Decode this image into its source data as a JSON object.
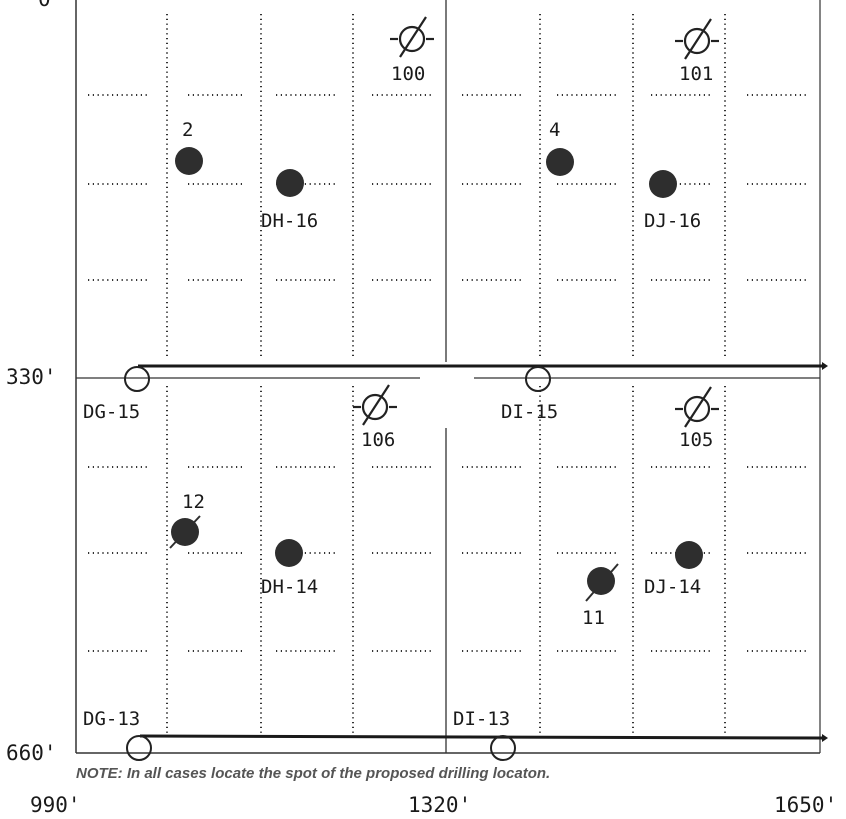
{
  "axes": {
    "y_labels": [
      "0",
      "330'",
      "660'"
    ],
    "x_labels": [
      "990'",
      "1320'",
      "1650'"
    ]
  },
  "note": "NOTE: In all cases locate the spot of the proposed drilling locaton.",
  "grid_labels": {
    "dh16": "DH-16",
    "dj16": "DJ-16",
    "dg15": "DG-15",
    "di15": "DI-15",
    "dh14": "DH-14",
    "dj14": "DJ-14",
    "dg13": "DG-13",
    "di13": "DI-13"
  },
  "wells": {
    "w100": "100",
    "w101": "101",
    "w2": "2",
    "w4": "4",
    "w106": "106",
    "w105": "105",
    "w12": "12",
    "w11": "11"
  },
  "colors": {
    "line": "#333333",
    "dot": "#2e2e2e",
    "pipeline": "#1a1a1a"
  }
}
